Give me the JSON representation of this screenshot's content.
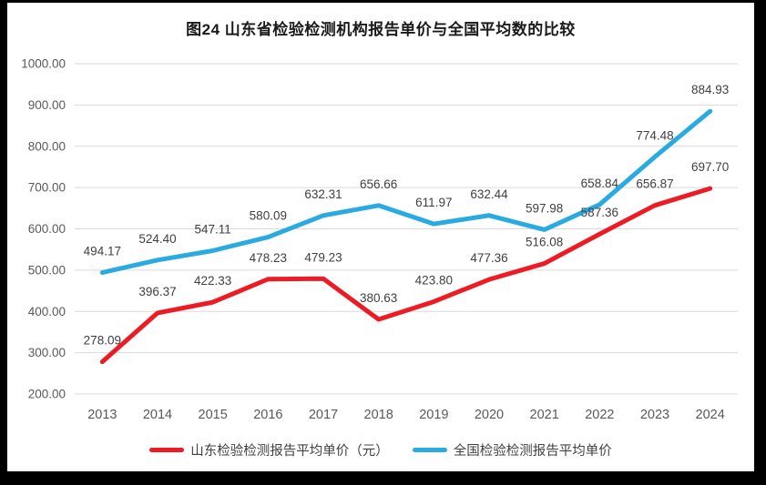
{
  "frame": {
    "background": "#000000",
    "card_background": "#ffffff"
  },
  "chart_data": {
    "type": "line",
    "title": "图24  山东省检验检测机构报告单价与全国平均数的比较",
    "categories": [
      "2013",
      "2014",
      "2015",
      "2016",
      "2017",
      "2018",
      "2019",
      "2020",
      "2021",
      "2022",
      "2023",
      "2024"
    ],
    "series": [
      {
        "name": "山东检验检测报告平均单价（元）",
        "color": "#ED1C24",
        "values": [
          278.09,
          396.37,
          422.33,
          478.23,
          479.23,
          380.63,
          423.8,
          477.36,
          516.08,
          587.36,
          656.87,
          697.7
        ]
      },
      {
        "name": "全国检验检测报告平均单价",
        "color": "#29ABE2",
        "values": [
          494.17,
          524.4,
          547.11,
          580.09,
          632.31,
          656.66,
          611.97,
          632.44,
          597.98,
          658.84,
          774.48,
          884.93
        ]
      }
    ],
    "ylim": [
      200,
      1000
    ],
    "ytick_step": 100,
    "ytick_labels": [
      "200.00",
      "300.00",
      "400.00",
      "500.00",
      "600.00",
      "700.00",
      "800.00",
      "900.00",
      "1000.00"
    ],
    "grid": true,
    "legend_position": "bottom",
    "data_labels_shown": true,
    "colors": {
      "gridline": "#D9D9D9",
      "axis_text": "#595959",
      "data_label": "#404040",
      "title_text": "#1a1a1a"
    }
  }
}
